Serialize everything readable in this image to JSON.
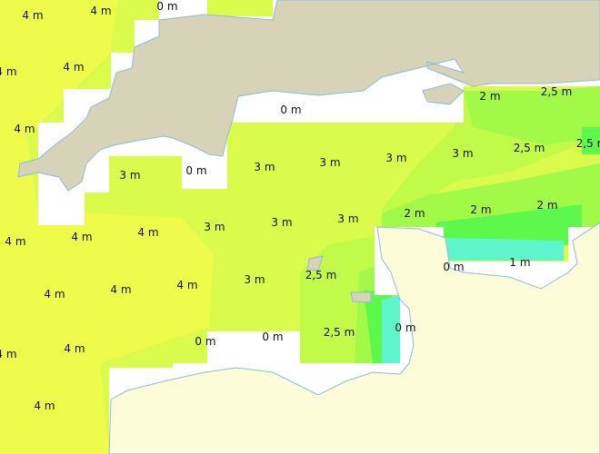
{
  "map": {
    "subject": "wave height",
    "colors": {
      "h4": "#eefb4a",
      "h3": "#dafb4c",
      "h25": "#c2fa4a",
      "h2": "#a2f948",
      "h15": "#5ef84c",
      "h1": "#5ef5cc",
      "nodata": "#ffffff",
      "land_uk": "#d6d3b8",
      "land_fr": "#fdfcd8",
      "coast": "#8cbcd8"
    },
    "labels": [
      "4 m",
      "4 m",
      "0 m",
      "4 m",
      "4 m",
      "4 m",
      "0 m",
      "2 m",
      "2,5 m",
      "3 m",
      "0 m",
      "3 m",
      "3 m",
      "3 m",
      "3 m",
      "2,5 m",
      "2,5 m",
      "4 m",
      "4 m",
      "4 m",
      "3 m",
      "3 m",
      "3 m",
      "2 m",
      "2 m",
      "2 m",
      "4 m",
      "4 m",
      "4 m",
      "3 m",
      "2,5 m",
      "0 m",
      "1 m",
      "4 m",
      "4 m",
      "0 m",
      "0 m",
      "2,5 m",
      "0 m",
      "4 m"
    ]
  }
}
